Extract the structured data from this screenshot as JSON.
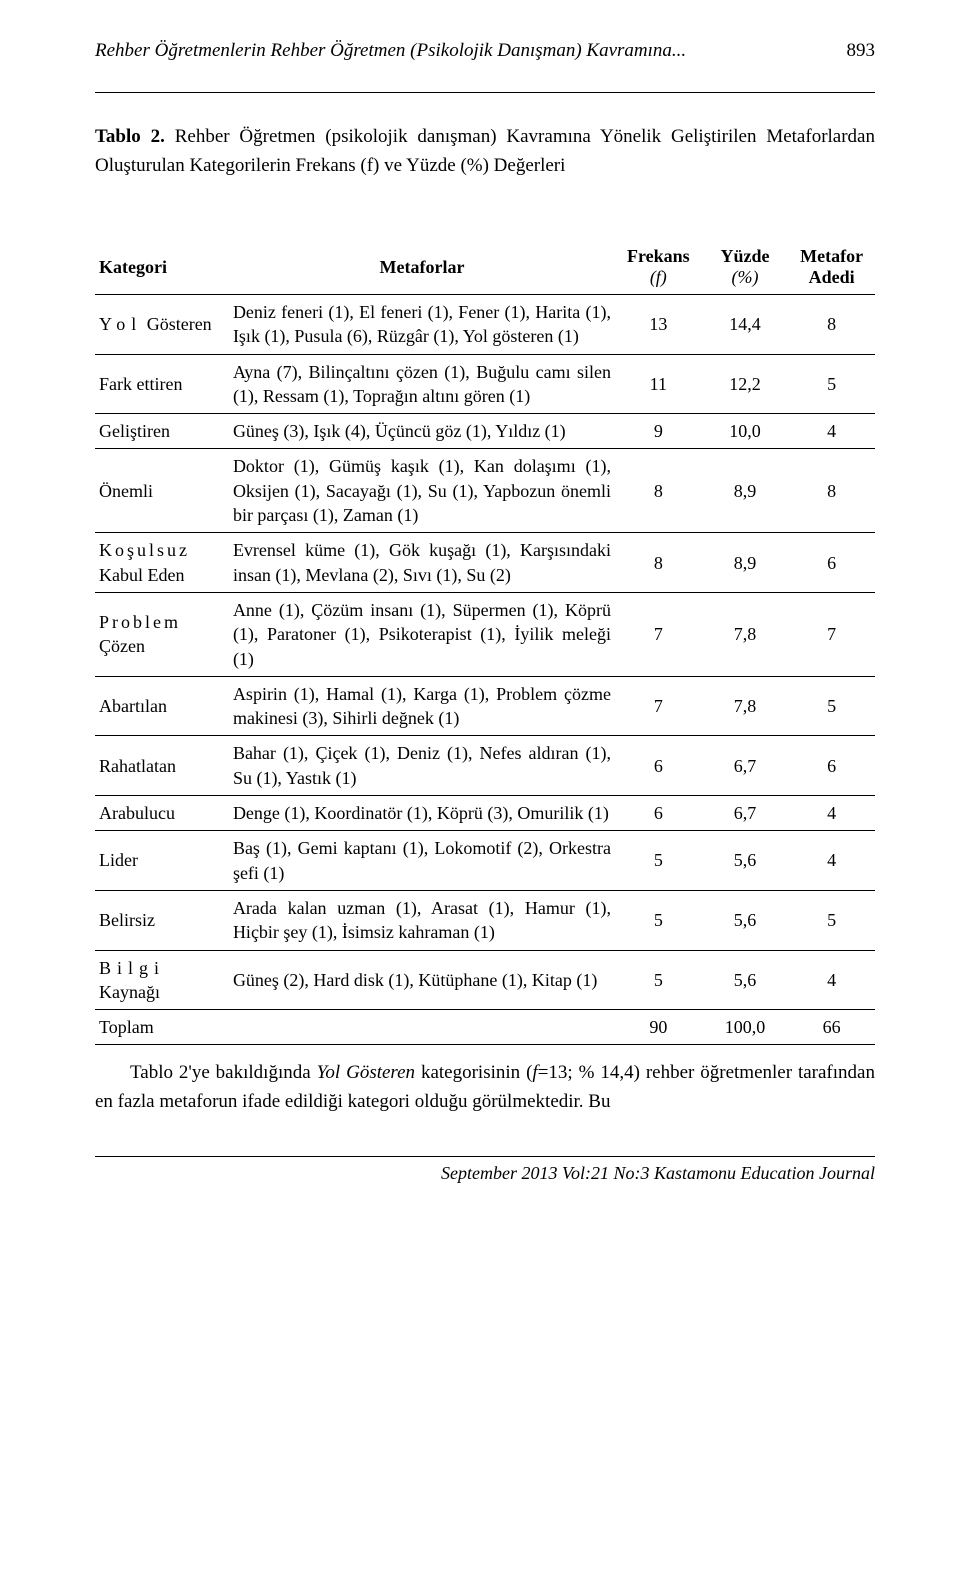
{
  "header": {
    "running_title": "Rehber Öğretmenlerin Rehber Öğretmen (Psikolojik Danışman) Kavramına...",
    "page_number": "893"
  },
  "caption": {
    "label": "Tablo 2.",
    "text": "Rehber Öğretmen (psikolojik danışman) Kavramına Yönelik Geliştirilen Metaforlardan Oluşturulan Kategorilerin Frekans (f) ve Yüzde (%) Değerleri"
  },
  "table": {
    "headers": {
      "col1": "Kategori",
      "col2": "Metaforlar",
      "col3_top": "Frekans",
      "col3_sub": "(f)",
      "col4_top": "Yüzde",
      "col4_sub": "(%)",
      "col5_top": "Metafor",
      "col5_bot": "Adedi"
    },
    "rows": [
      {
        "category_html": "<span class='spaced-wide'>Yol</span> Gösteren",
        "metaphors": "Deniz feneri (1), El feneri (1), Fener (1), Harita (1), Işık (1), Pusula (6), Rüzgâr (1), Yol gösteren (1)",
        "f": "13",
        "pct": "14,4",
        "count": "8"
      },
      {
        "category": "Fark ettiren",
        "metaphors": "Ayna (7), Bilinçaltını çözen (1), Buğulu camı silen (1), Ressam (1), Toprağın altını gören (1)",
        "f": "11",
        "pct": "12,2",
        "count": "5"
      },
      {
        "category": "Geliştiren",
        "metaphors": "Güneş (3), Işık (4), Üçüncü göz (1), Yıldız (1)",
        "f": "9",
        "pct": "10,0",
        "count": "4"
      },
      {
        "category": "Önemli",
        "metaphors": "Doktor (1), Gümüş kaşık (1), Kan dolaşımı (1), Oksijen (1), Sacayağı (1), Su (1), Yapbozun önemli bir parçası (1), Zaman (1)",
        "f": "8",
        "pct": "8,9",
        "count": "8"
      },
      {
        "category_html": "<span class='spaced'>Koşulsuz</span> Kabul Eden",
        "metaphors": "Evrensel küme (1), Gök kuşağı (1), Karşısındaki insan (1), Mevlana (2), Sıvı (1), Su (2)",
        "f": "8",
        "pct": "8,9",
        "count": "6"
      },
      {
        "category_html": "<span class='spaced'>Problem</span> Çözen",
        "metaphors": "Anne (1), Çözüm insanı (1), Süpermen (1), Köprü (1), Paratoner (1), Psikoterapist (1), İyilik meleği (1)",
        "f": "7",
        "pct": "7,8",
        "count": "7"
      },
      {
        "category": "Abartılan",
        "metaphors": "Aspirin (1), Hamal (1), Karga (1), Problem çözme makinesi (3), Sihirli değnek (1)",
        "f": "7",
        "pct": "7,8",
        "count": "5"
      },
      {
        "category": "Rahatlatan",
        "metaphors": "Bahar (1), Çiçek (1), Deniz (1), Nefes aldıran (1), Su (1), Yastık (1)",
        "f": "6",
        "pct": "6,7",
        "count": "6"
      },
      {
        "category": "Arabulucu",
        "metaphors": "Denge (1), Koordinatör (1), Köprü (3), Omurilik (1)",
        "f": "6",
        "pct": "6,7",
        "count": "4"
      },
      {
        "category": "Lider",
        "metaphors": "Baş (1), Gemi kaptanı (1), Lokomotif (2), Orkestra şefi (1)",
        "f": "5",
        "pct": "5,6",
        "count": "4"
      },
      {
        "category": "Belirsiz",
        "metaphors": "Arada kalan uzman (1), Arasat (1), Hamur (1), Hiçbir şey (1), İsimsiz kahraman (1)",
        "f": "5",
        "pct": "5,6",
        "count": "5"
      },
      {
        "category_html": "<span class='spaced-wide'>Bilgi</span> Kaynağı",
        "metaphors": "Güneş (2), Hard disk (1), Kütüphane (1), Kitap (1)",
        "f": "5",
        "pct": "5,6",
        "count": "4"
      }
    ],
    "total": {
      "label": "Toplam",
      "f": "90",
      "pct": "100,0",
      "count": "66"
    }
  },
  "body_paragraph": {
    "prefix": "Tablo 2'ye bakıldığında ",
    "italic": "Yol Gösteren",
    "middle": " kategorisinin (",
    "fvar": "f",
    "suffix": "=13; % 14,4) rehber öğretmenler tarafından en fazla metaforun ifade edildiği kategori olduğu görülmektedir. Bu"
  },
  "footer": {
    "text": "September 2013 Vol:21 No:3 Kastamonu Education Journal"
  }
}
